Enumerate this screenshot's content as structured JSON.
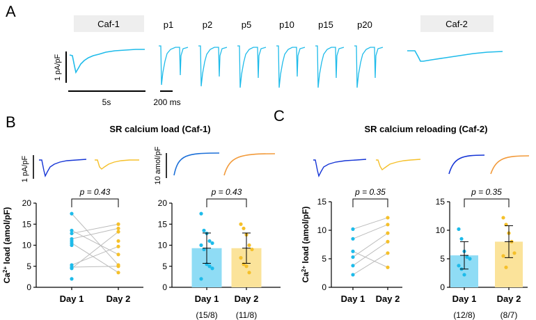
{
  "colors": {
    "cyan": "#1ebbea",
    "cyan_fill": "#8fdcf5",
    "yellow": "#f5c02a",
    "yellow_fill": "#fbe39a",
    "blue": "#1535d6",
    "orange": "#f29a3a",
    "model_blue": "#1b6fd8",
    "label_box": "#eeeeee",
    "pair_line": "#bbbbbb"
  },
  "panels": {
    "a": "A",
    "b": "B",
    "c": "C"
  },
  "panel_a": {
    "caf1_label": "Caf-1",
    "caf2_label": "Caf-2",
    "pulses": [
      "p1",
      "p2",
      "p5",
      "p10",
      "p15",
      "p20"
    ],
    "scale_y": "1 pA/pF",
    "scale_time_long": "5s",
    "scale_time_short": "200 ms"
  },
  "panel_b": {
    "title": "SR calcium load (Caf-1)",
    "scale_current": "1 pA/pF",
    "scale_load": "10 amol/pF"
  },
  "panel_c": {
    "title": "SR calcium reloading (Caf-2)"
  },
  "chart_data": [
    {
      "id": "b_paired",
      "type": "scatter",
      "subtype": "paired",
      "ylabel": "Ca²⁺ load (amol/pF)",
      "ylim": [
        0,
        20
      ],
      "yticks": [
        0,
        5,
        10,
        15,
        20
      ],
      "categories": [
        "Day 1",
        "Day 2"
      ],
      "annotation": "p = 0.43",
      "day1_points": [
        17.5,
        13.5,
        12.8,
        11.5,
        11.0,
        10.5,
        10.0,
        5.3,
        4.8,
        4.5,
        2.0
      ],
      "day2_points": [
        15.0,
        14.0,
        13.2,
        11.0,
        9.7,
        7.8,
        5.3,
        5.0,
        3.5
      ],
      "pairs": [
        [
          17.5,
          5.3
        ],
        [
          13.5,
          7.8
        ],
        [
          12.8,
          15.0
        ],
        [
          11.5,
          14.0
        ],
        [
          10.5,
          3.5
        ],
        [
          5.3,
          9.7
        ],
        [
          4.8,
          5.0
        ],
        [
          4.5,
          13.2
        ]
      ]
    },
    {
      "id": "b_bar",
      "type": "bar",
      "ylim": [
        0,
        20
      ],
      "yticks": [
        0,
        5,
        10,
        15,
        20
      ],
      "categories": [
        "Day 1",
        "Day 2"
      ],
      "n_labels": [
        "(15/8)",
        "(11/8)"
      ],
      "annotation": "p = 0.43",
      "values": [
        9.3,
        9.3
      ],
      "errors": [
        3.6,
        3.6
      ],
      "points": [
        [
          17.5,
          13.5,
          12.8,
          11.0,
          10.5,
          10.0,
          9.0,
          5.5,
          5.0,
          4.5,
          2.0
        ],
        [
          15.0,
          14.0,
          12.5,
          10.0,
          9.0,
          7.0,
          5.5,
          5.0,
          3.5
        ]
      ]
    },
    {
      "id": "c_paired",
      "type": "scatter",
      "subtype": "paired",
      "ylabel": "Ca²⁺ load (amol/pF)",
      "ylim": [
        0,
        15
      ],
      "yticks": [
        0,
        5,
        10,
        15
      ],
      "categories": [
        "Day 1",
        "Day 2"
      ],
      "annotation": "p = 0.35",
      "day1_points": [
        10.2,
        8.5,
        6.3,
        5.3,
        3.8,
        2.2
      ],
      "day2_points": [
        12.2,
        11.0,
        9.5,
        8.0,
        6.0,
        3.5
      ],
      "pairs": [
        [
          10.2,
          12.2
        ],
        [
          8.5,
          11.0
        ],
        [
          6.3,
          3.5
        ],
        [
          5.3,
          9.5
        ],
        [
          3.8,
          8.0
        ],
        [
          2.2,
          6.0
        ]
      ]
    },
    {
      "id": "c_bar",
      "type": "bar",
      "ylim": [
        0,
        15
      ],
      "yticks": [
        0,
        5,
        10,
        15
      ],
      "categories": [
        "Day 1",
        "Day 2"
      ],
      "n_labels": [
        "(12/8)",
        "(8/7)"
      ],
      "annotation": "p = 0.35",
      "values": [
        5.6,
        8.0
      ],
      "errors": [
        2.4,
        2.8
      ],
      "points": [
        [
          10.2,
          8.5,
          6.3,
          5.3,
          5.0,
          3.8,
          3.2,
          2.2
        ],
        [
          12.2,
          11.0,
          9.5,
          8.0,
          6.0,
          5.5,
          3.5
        ]
      ]
    }
  ]
}
